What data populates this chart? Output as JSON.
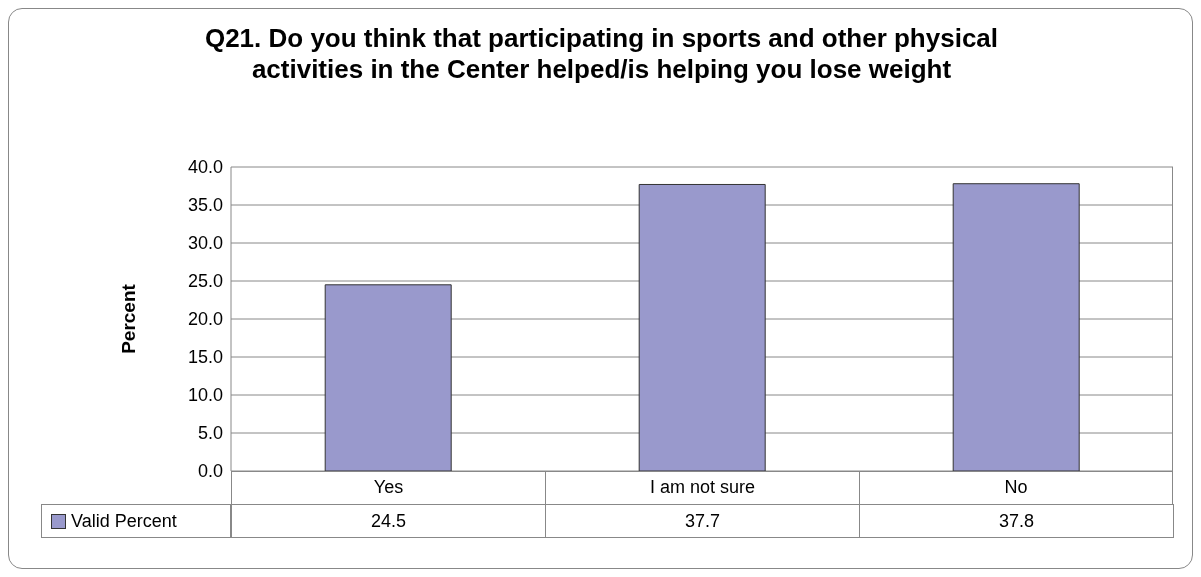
{
  "chart_data": {
    "type": "bar",
    "title": "Q21. Do you think that participating in sports and other physical activities in the Center helped/is helping you lose weight",
    "ylabel": "Percent",
    "categories": [
      "Yes",
      "I am not sure",
      "No"
    ],
    "series": [
      {
        "name": "Valid Percent",
        "color": "#9999cc",
        "values": [
          24.5,
          37.7,
          37.8
        ]
      }
    ],
    "ylim": [
      0,
      40
    ],
    "yticks": [
      {
        "value": 0,
        "label": "0.0"
      },
      {
        "value": 5,
        "label": "5.0"
      },
      {
        "value": 10,
        "label": "10.0"
      },
      {
        "value": 15,
        "label": "15.0"
      },
      {
        "value": 20,
        "label": "20.0"
      },
      {
        "value": 25,
        "label": "25.0"
      },
      {
        "value": 30,
        "label": "30.0"
      },
      {
        "value": 35,
        "label": "35.0"
      },
      {
        "value": 40,
        "label": "40.0"
      }
    ],
    "grid": "y",
    "legend": "bottom",
    "data_labels": true
  }
}
